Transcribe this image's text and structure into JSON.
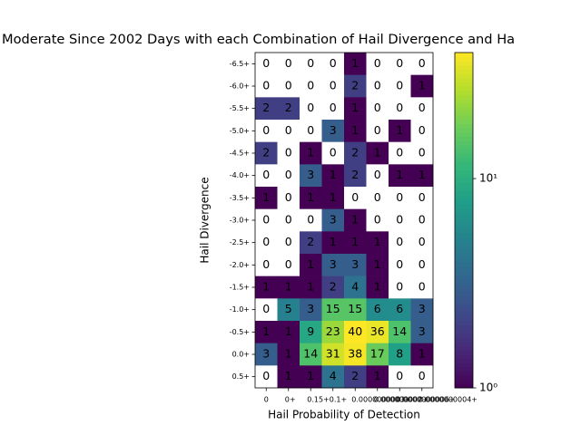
{
  "chart_data": {
    "type": "heatmap",
    "title": "Moderate Since 2002 Days with each Combination of Hail Divergence and Ha",
    "x_label": "Hail Probability of Detection",
    "y_label": "Hail Divergence",
    "x_categories": [
      "0",
      "0+",
      "0.15+",
      "0.1+",
      "0.0000000003+",
      "0.000000002+",
      "0.0000000006+",
      "0.0000000004+"
    ],
    "y_categories": [
      "-6.5+",
      "-6.0+",
      "-5.5+",
      "-5.0+",
      "-4.5+",
      "-4.0+",
      "-3.5+",
      "-3.0+",
      "-2.5+",
      "-2.0+",
      "-1.5+",
      "-1.0+",
      "-0.5+",
      "0.0+",
      "0.5+"
    ],
    "values": [
      [
        0,
        0,
        0,
        0,
        1,
        0,
        0,
        0
      ],
      [
        0,
        0,
        0,
        0,
        2,
        0,
        0,
        1
      ],
      [
        2,
        2,
        0,
        0,
        1,
        0,
        0,
        0
      ],
      [
        0,
        0,
        0,
        3,
        1,
        0,
        1,
        0
      ],
      [
        2,
        0,
        1,
        0,
        2,
        1,
        0,
        0
      ],
      [
        0,
        0,
        3,
        1,
        2,
        0,
        1,
        1
      ],
      [
        1,
        0,
        1,
        1,
        0,
        0,
        0,
        0
      ],
      [
        0,
        0,
        0,
        3,
        1,
        0,
        0,
        0
      ],
      [
        0,
        0,
        2,
        1,
        1,
        1,
        0,
        0
      ],
      [
        0,
        0,
        1,
        3,
        3,
        1,
        0,
        0
      ],
      [
        1,
        1,
        1,
        2,
        4,
        1,
        0,
        0
      ],
      [
        0,
        5,
        3,
        15,
        15,
        6,
        6,
        3
      ],
      [
        1,
        1,
        9,
        23,
        40,
        36,
        14,
        3
      ],
      [
        3,
        1,
        14,
        31,
        38,
        17,
        8,
        1
      ],
      [
        0,
        1,
        1,
        4,
        2,
        1,
        0,
        0
      ]
    ],
    "colormap": "viridis",
    "log_scale": true,
    "zlim": [
      1,
      40
    ],
    "zticks": [
      {
        "value": 1,
        "label": "10⁰"
      },
      {
        "value": 10,
        "label": "10¹"
      }
    ]
  }
}
